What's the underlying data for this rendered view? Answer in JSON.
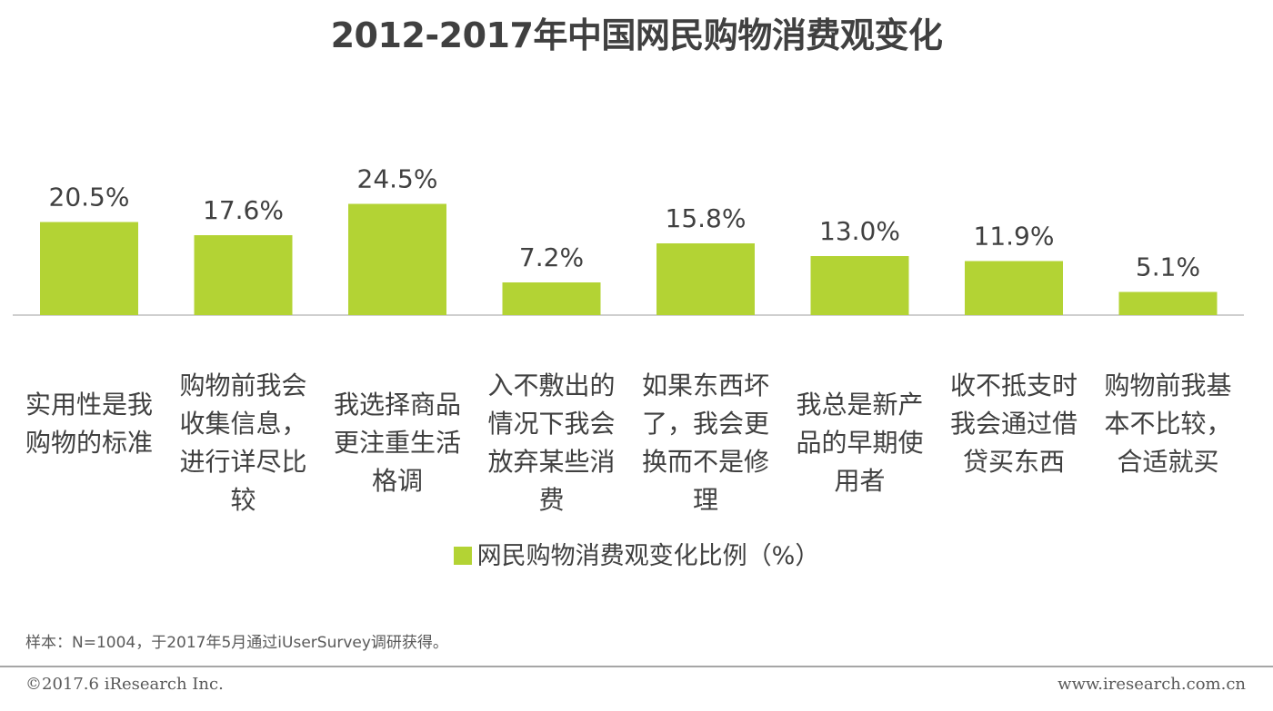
{
  "chart_data": {
    "type": "bar",
    "title": "2012-2017年中国网民购物消费观变化",
    "categories": [
      "实用性是我购物的标准",
      "购物前我会收集信息，进行详尽比较",
      "我选择商品更注重生活格调",
      "入不敷出的情况下我会放弃某些消费",
      "如果东西坏了，我会更换而不是修理",
      "我总是新产品的早期使用者",
      "收不抵支时我会通过借贷买东西",
      "购物前我基本不比较，合适就买"
    ],
    "series": [
      {
        "name": "网民购物消费观变化比例（%）",
        "values": [
          20.5,
          17.6,
          24.5,
          7.2,
          15.8,
          13.0,
          11.9,
          5.1
        ],
        "value_labels": [
          "20.5%",
          "17.6%",
          "24.5%",
          "7.2%",
          "15.8%",
          "13.0%",
          "11.9%",
          "5.1%"
        ]
      }
    ],
    "ylim": [
      0,
      28
    ],
    "bar_color": "#b3d334",
    "axis_color": "#bfbfbf",
    "grid": false,
    "legend_position": "bottom"
  },
  "sample_note": "样本：N=1004，于2017年5月通过iUserSurvey调研获得。",
  "footer": {
    "copyright": "©2017.6 iResearch Inc.",
    "website": "www.iresearch.com.cn"
  }
}
